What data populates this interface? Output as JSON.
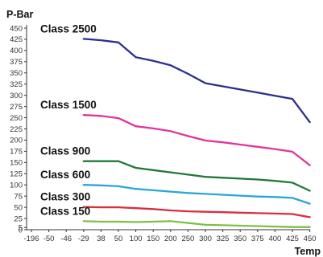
{
  "chart_data": {
    "type": "line",
    "ylabel": "P-Bar",
    "xlabel": "Temp",
    "x_ticks": [
      "-196",
      "-50",
      "-46",
      "-29",
      "38",
      "50",
      "100",
      "150",
      "200",
      "250",
      "300",
      "325",
      "350",
      "375",
      "400",
      "425",
      "450"
    ],
    "ylim": [
      0,
      450
    ],
    "y_ticks": [
      0,
      5,
      25,
      50,
      75,
      100,
      125,
      150,
      175,
      200,
      225,
      250,
      275,
      300,
      325,
      350,
      375,
      400,
      425,
      450
    ],
    "grid": false,
    "series": [
      {
        "name": "Class 2500",
        "color": "#2b2f8f",
        "x": [
          "-29",
          "38",
          "50",
          "100",
          "150",
          "200",
          "250",
          "300",
          "325",
          "350",
          "375",
          "400",
          "425",
          "450"
        ],
        "values": [
          426,
          423,
          418,
          385,
          377,
          367,
          348,
          327,
          320,
          313,
          306,
          299,
          292,
          240
        ]
      },
      {
        "name": "Class 1500",
        "color": "#e0359b",
        "x": [
          "-29",
          "38",
          "50",
          "100",
          "150",
          "200",
          "250",
          "300",
          "325",
          "350",
          "375",
          "400",
          "425",
          "450"
        ],
        "values": [
          256,
          254,
          249,
          231,
          226,
          220,
          209,
          199,
          195,
          190,
          185,
          180,
          174,
          144
        ]
      },
      {
        "name": "Class 900",
        "color": "#1f7a3a",
        "x": [
          "-29",
          "38",
          "50",
          "100",
          "150",
          "200",
          "250",
          "300",
          "325",
          "350",
          "375",
          "400",
          "425",
          "450"
        ],
        "values": [
          153,
          153,
          153,
          138,
          133,
          128,
          123,
          118,
          116,
          114,
          112,
          109,
          105,
          87
        ]
      },
      {
        "name": "Class 600",
        "color": "#29a7d8",
        "x": [
          "-29",
          "38",
          "50",
          "100",
          "150",
          "200",
          "250",
          "300",
          "325",
          "350",
          "375",
          "400",
          "425",
          "450"
        ],
        "values": [
          100,
          99,
          97,
          91,
          88,
          85,
          82,
          80,
          78,
          76,
          74,
          73,
          71,
          58
        ]
      },
      {
        "name": "Class 300",
        "color": "#d92f3a",
        "x": [
          "-29",
          "38",
          "50",
          "100",
          "150",
          "200",
          "250",
          "300",
          "325",
          "350",
          "375",
          "400",
          "425",
          "450"
        ],
        "values": [
          51,
          50,
          50,
          48,
          46,
          43,
          41,
          40,
          39,
          38,
          37,
          36,
          35,
          28
        ]
      },
      {
        "name": "Class 150",
        "color": "#7cc142",
        "x": [
          "-29",
          "38",
          "50",
          "100",
          "150",
          "200",
          "250",
          "300",
          "325",
          "350",
          "375",
          "400",
          "425",
          "450"
        ],
        "values": [
          19,
          18,
          18,
          17,
          18,
          19,
          15,
          11,
          10,
          9,
          8,
          7,
          6,
          6
        ]
      }
    ]
  }
}
